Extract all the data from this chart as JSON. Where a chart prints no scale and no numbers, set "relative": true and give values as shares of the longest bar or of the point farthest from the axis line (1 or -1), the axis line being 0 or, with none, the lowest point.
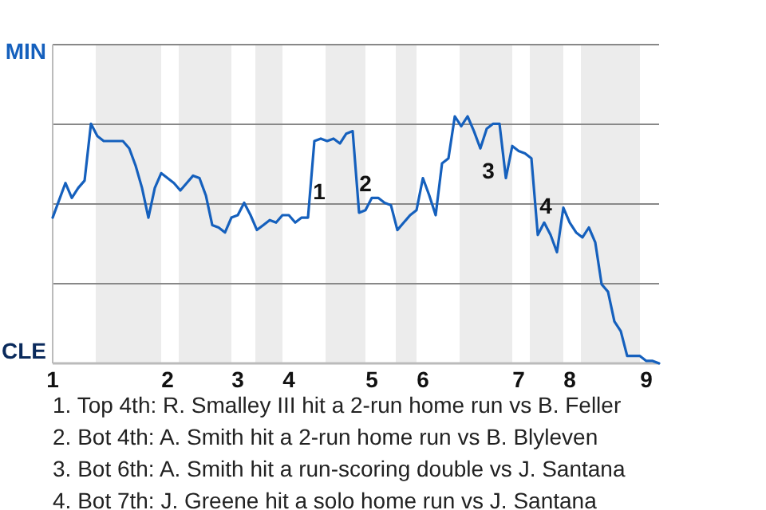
{
  "chart_data": {
    "type": "line",
    "relative": true,
    "categories": [
      "1",
      null,
      null,
      null,
      null,
      null,
      null,
      null,
      null,
      null,
      null,
      null,
      null,
      null,
      null,
      null,
      null,
      null,
      "2",
      null,
      null,
      null,
      null,
      null,
      null,
      null,
      null,
      null,
      null,
      "3",
      null,
      null,
      null,
      null,
      null,
      null,
      null,
      "4",
      null,
      null,
      null,
      null,
      null,
      null,
      null,
      null,
      null,
      null,
      null,
      null,
      "5",
      null,
      null,
      null,
      null,
      null,
      null,
      null,
      "6",
      null,
      null,
      null,
      null,
      null,
      null,
      null,
      null,
      null,
      null,
      null,
      null,
      null,
      null,
      "7",
      null,
      null,
      null,
      null,
      null,
      null,
      null,
      "8",
      null,
      null,
      null,
      null,
      null,
      null,
      null,
      null,
      null,
      null,
      null,
      "9",
      null,
      null
    ],
    "series": [
      {
        "color": "#1560bd",
        "values": [
          0.59,
          0.66,
          0.73,
          0.67,
          0.71,
          0.74,
          0.97,
          0.92,
          0.9,
          0.9,
          0.9,
          0.9,
          0.87,
          0.8,
          0.71,
          0.59,
          0.71,
          0.77,
          0.75,
          0.73,
          0.7,
          0.73,
          0.76,
          0.75,
          0.68,
          0.56,
          0.55,
          0.53,
          0.59,
          0.6,
          0.65,
          0.6,
          0.54,
          0.56,
          0.58,
          0.57,
          0.6,
          0.6,
          0.57,
          0.59,
          0.59,
          0.9,
          0.91,
          0.9,
          0.91,
          0.89,
          0.93,
          0.94,
          0.61,
          0.62,
          0.67,
          0.67,
          0.65,
          0.64,
          0.54,
          0.57,
          0.6,
          0.62,
          0.75,
          0.68,
          0.6,
          0.81,
          0.83,
          1,
          0.96,
          1,
          0.94,
          0.87,
          0.95,
          0.97,
          0.97,
          0.75,
          0.88,
          0.86,
          0.85,
          0.83,
          0.52,
          0.57,
          0.52,
          0.45,
          0.63,
          0.57,
          0.53,
          0.51,
          0.55,
          0.49,
          0.32,
          0.29,
          0.17,
          0.13,
          0.03,
          0.03,
          0.03,
          0.01,
          0.01,
          0
        ]
      }
    ],
    "grid": "y",
    "marker": "none",
    "line_style": "solid",
    "annotations": [
      "MIN",
      "CLE",
      "1",
      "2",
      "3",
      "4",
      "1. Top 4th: R. Smalley III hit a 2-run home run vs B. Feller",
      "2. Bot 4th: A. Smith hit a 2-run home run vs B. Blyleven",
      "3. Bot 6th: A. Smith hit a run-scoring double vs J. Santana",
      "4. Bot 7th: J. Greene hit a solo home run vs J. Santana"
    ]
  }
}
